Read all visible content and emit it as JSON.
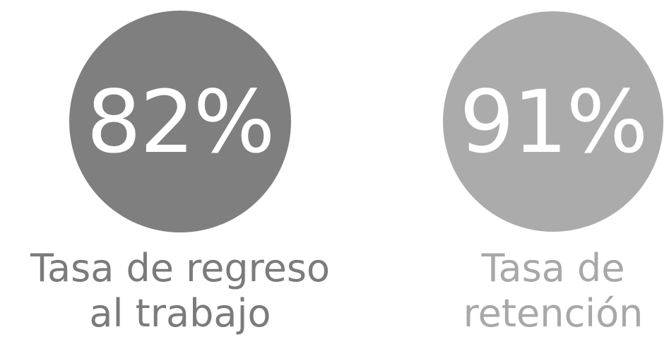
{
  "stats": [
    {
      "value": "82%",
      "caption": [
        "Tasa de regreso",
        "al trabajo"
      ]
    },
    {
      "value": "91%",
      "caption": [
        "Tasa de",
        "retención"
      ]
    }
  ]
}
